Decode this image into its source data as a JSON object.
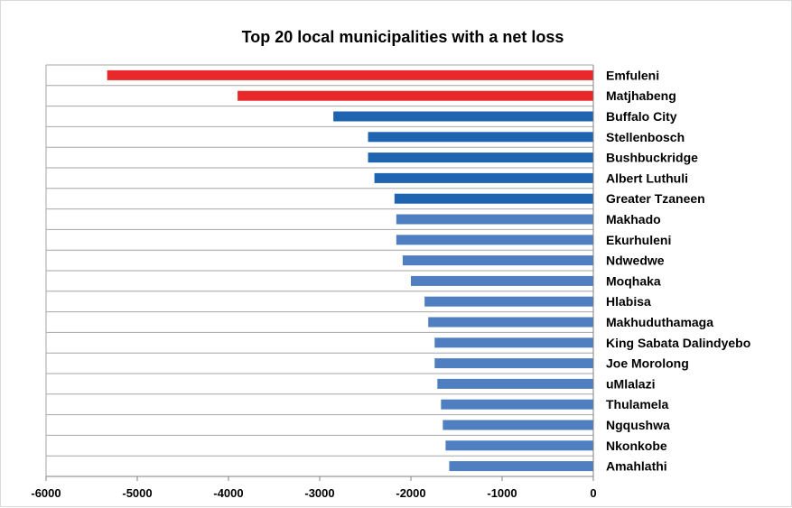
{
  "chart_data": {
    "type": "bar",
    "orientation": "horizontal",
    "title": "Top 20 local municipalities with a net loss",
    "xlabel": "",
    "ylabel": "",
    "xlim": [
      -6000,
      0
    ],
    "x_ticks": [
      -6000,
      -5000,
      -4000,
      -3000,
      -2000,
      -1000,
      0
    ],
    "grid": true,
    "legend": "none",
    "categories": [
      "Emfuleni",
      "Matjhabeng",
      "Buffalo City",
      "Stellenbosch",
      "Bushbuckridge",
      "Albert Luthuli",
      "Greater Tzaneen",
      "Makhado",
      "Ekurhuleni",
      "Ndwedwe",
      "Moqhaka",
      "Hlabisa",
      "Makhuduthamaga",
      "King Sabata Dalindyebo",
      "Joe Morolong",
      "uMlalazi",
      "Thulamela",
      "Ngqushwa",
      "Nkonkobe",
      "Amahlathi"
    ],
    "values": [
      -5330,
      -3900,
      -2850,
      -2470,
      -2470,
      -2400,
      -2180,
      -2160,
      -2160,
      -2090,
      -2000,
      -1850,
      -1810,
      -1740,
      -1740,
      -1710,
      -1670,
      -1650,
      -1620,
      -1580
    ],
    "bar_colors": [
      "#e8282b",
      "#e8282b",
      "#1f64b0",
      "#1f64b0",
      "#1f64b0",
      "#1f64b0",
      "#1f64b0",
      "#4f7fc0",
      "#4f7fc0",
      "#4f7fc0",
      "#4f7fc0",
      "#4f7fc0",
      "#4f7fc0",
      "#4f7fc0",
      "#4f7fc0",
      "#4f7fc0",
      "#4f7fc0",
      "#4f7fc0",
      "#4f7fc0",
      "#4f7fc0"
    ],
    "gridline_color": "#a6a6a6"
  }
}
